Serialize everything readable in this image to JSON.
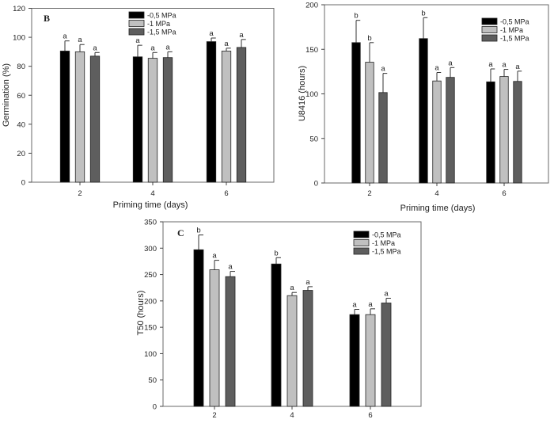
{
  "chart_data": [
    {
      "type": "bar",
      "panel_label": "B",
      "xlabel": "Priming time (days)",
      "ylabel": "Germination (%)",
      "categories": [
        "2",
        "4",
        "6"
      ],
      "ylim": [
        0,
        120
      ],
      "yticks": [
        0,
        20,
        40,
        60,
        80,
        100,
        120
      ],
      "legend_position": "top-center",
      "series": [
        {
          "name": "-0,5 MPa",
          "color": "#000000",
          "values": [
            90.5,
            86.5,
            97
          ],
          "errors": [
            7,
            8,
            2.5
          ],
          "letters": [
            "a",
            "a",
            "a"
          ]
        },
        {
          "name": "-1 MPa",
          "color": "#c0c0c0",
          "values": [
            90,
            85.5,
            90.5
          ],
          "errors": [
            5,
            4,
            2
          ],
          "letters": [
            "a",
            "a",
            "a"
          ]
        },
        {
          "name": "-1,5 MPa",
          "color": "#5e5e5e",
          "values": [
            87,
            86,
            93
          ],
          "errors": [
            2.5,
            4,
            5.5
          ],
          "letters": [
            "a",
            "a",
            "a"
          ]
        }
      ]
    },
    {
      "type": "bar",
      "panel_label": "",
      "xlabel": "Priming time (days)",
      "ylabel": "U8416 (hours)",
      "categories": [
        "2",
        "4",
        "6"
      ],
      "ylim": [
        0,
        200
      ],
      "yticks": [
        0,
        50,
        100,
        150,
        200
      ],
      "legend_position": "top-right",
      "series": [
        {
          "name": "-0,5 MPa",
          "color": "#000000",
          "values": [
            157.5,
            162,
            113.5
          ],
          "errors": [
            25,
            23.5,
            14.5
          ],
          "letters": [
            "b",
            "b",
            "a"
          ]
        },
        {
          "name": "-1 MPa",
          "color": "#c0c0c0",
          "values": [
            135.5,
            114.5,
            119.5
          ],
          "errors": [
            22,
            9.5,
            8
          ],
          "letters": [
            "b",
            "a",
            "a"
          ]
        },
        {
          "name": "-1,5 MPa",
          "color": "#5e5e5e",
          "values": [
            101.5,
            118.5,
            114
          ],
          "errors": [
            21.5,
            11,
            11.5
          ],
          "letters": [
            "a",
            "a",
            "a"
          ]
        }
      ]
    },
    {
      "type": "bar",
      "panel_label": "C",
      "xlabel": "",
      "ylabel": "T50 (hours)",
      "categories": [
        "2",
        "4",
        "6"
      ],
      "ylim": [
        0,
        350
      ],
      "yticks": [
        0,
        50,
        100,
        150,
        200,
        250,
        300,
        350
      ],
      "legend_position": "top-right",
      "series": [
        {
          "name": "-0,5 MPa",
          "color": "#000000",
          "values": [
            297,
            270,
            174
          ],
          "errors": [
            28,
            12,
            10
          ],
          "letters": [
            "b",
            "b",
            "a"
          ]
        },
        {
          "name": "-1 MPa",
          "color": "#c0c0c0",
          "values": [
            259,
            210,
            174
          ],
          "errors": [
            18,
            6,
            11
          ],
          "letters": [
            "a",
            "a",
            "a"
          ]
        },
        {
          "name": "-1,5 MPa",
          "color": "#5e5e5e",
          "values": [
            246,
            220,
            196
          ],
          "errors": [
            10,
            7,
            9
          ],
          "letters": [
            "a",
            "a",
            "a"
          ]
        }
      ]
    }
  ]
}
